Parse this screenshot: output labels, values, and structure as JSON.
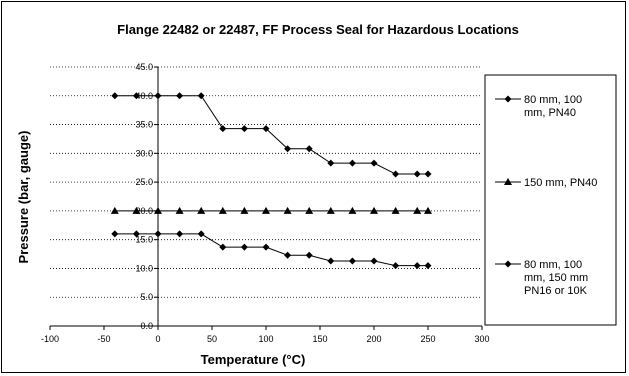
{
  "chart_data": {
    "type": "line",
    "title": "Flange 22482 or 22487, FF Process Seal for Hazardous Locations",
    "xlabel": "Temperature (°C)",
    "ylabel": "Pressure (bar, gauge)",
    "xlim": [
      -100,
      300
    ],
    "ylim": [
      0,
      45
    ],
    "x_ticks": [
      "-100",
      "-50",
      "0",
      "50",
      "100",
      "150",
      "200",
      "250",
      "300"
    ],
    "y_ticks": [
      "0.0",
      "5.0",
      "10.0",
      "15.0",
      "20.0",
      "25.0",
      "30.0",
      "35.0",
      "40.0",
      "45.0"
    ],
    "grid": "horizontal dotted",
    "legend_position": "right",
    "x": [
      -40,
      -20,
      0,
      20,
      40,
      60,
      80,
      100,
      120,
      140,
      160,
      180,
      200,
      220,
      240,
      250
    ],
    "series": [
      {
        "name_lines": [
          "80 mm, 100",
          "mm, PN40"
        ],
        "marker": "diamond",
        "values": [
          40.0,
          40.0,
          40.0,
          40.0,
          40.0,
          34.3,
          34.3,
          34.3,
          30.8,
          30.8,
          28.3,
          28.3,
          28.3,
          26.4,
          26.4,
          26.4
        ]
      },
      {
        "name_lines": [
          "150 mm, PN40"
        ],
        "marker": "triangle",
        "values": [
          20.0,
          20.0,
          20.0,
          20.0,
          20.0,
          20.0,
          20.0,
          20.0,
          20.0,
          20.0,
          20.0,
          20.0,
          20.0,
          20.0,
          20.0,
          20.0
        ]
      },
      {
        "name_lines": [
          "80 mm, 100",
          "mm, 150 mm",
          "PN16 or 10K"
        ],
        "marker": "diamond",
        "values": [
          16.0,
          16.0,
          16.0,
          16.0,
          16.0,
          13.7,
          13.7,
          13.7,
          12.3,
          12.3,
          11.3,
          11.3,
          11.3,
          10.5,
          10.5,
          10.5
        ]
      }
    ]
  }
}
